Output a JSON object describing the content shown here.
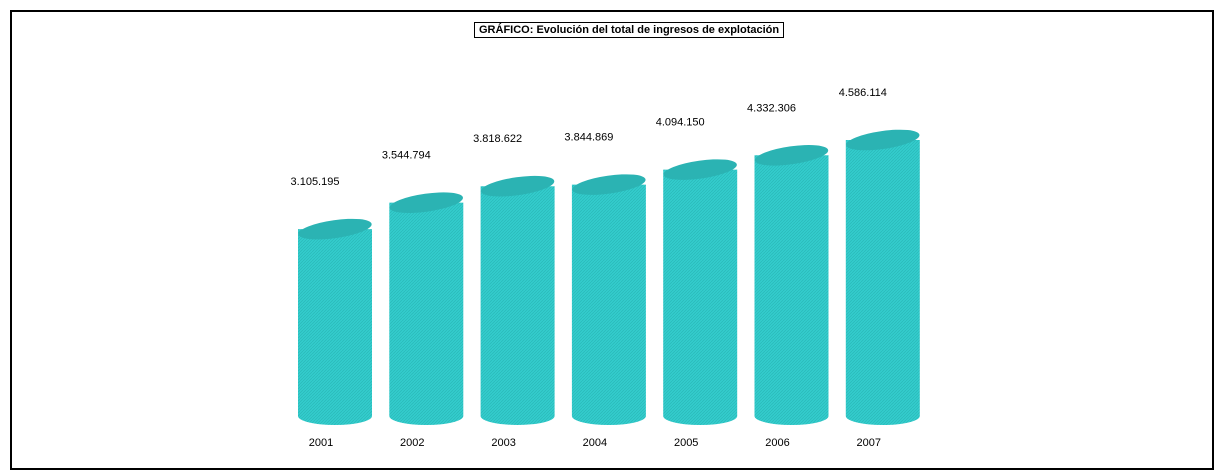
{
  "chart_data": {
    "type": "bar",
    "title": "GRÁFICO: Evolución del total  de ingresos de explotación",
    "categories": [
      "2001",
      "2002",
      "2003",
      "2004",
      "2005",
      "2006",
      "2007"
    ],
    "values": [
      3105195,
      3544794,
      3818622,
      3844869,
      4094150,
      4332306,
      4586114
    ],
    "value_labels": [
      "3.105.195",
      "3.544.794",
      "3.818.622",
      "3.844.869",
      "4.094.150",
      "4.332.306",
      "4.586.114"
    ],
    "bar_style": "cylinder",
    "grid": false,
    "colors": {
      "bar": "#33cccc",
      "bar_top": "#2bb3b3"
    }
  }
}
